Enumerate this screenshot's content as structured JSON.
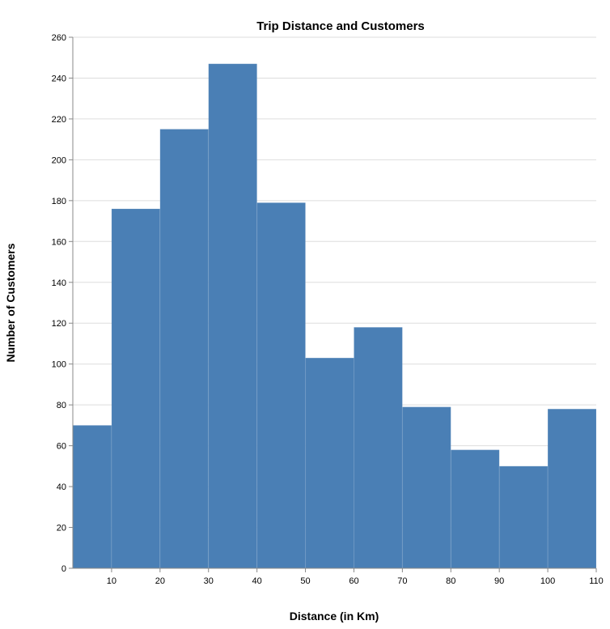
{
  "chart_data": {
    "type": "bar",
    "title": "Trip Distance and Customers",
    "xlabel": "Distance (in Km)",
    "ylabel": "Number of Customers",
    "bins": [
      {
        "x0": 2,
        "x1": 10,
        "value": 70
      },
      {
        "x0": 10,
        "x1": 20,
        "value": 176
      },
      {
        "x0": 20,
        "x1": 30,
        "value": 215
      },
      {
        "x0": 30,
        "x1": 40,
        "value": 247
      },
      {
        "x0": 40,
        "x1": 50,
        "value": 179
      },
      {
        "x0": 50,
        "x1": 60,
        "value": 103
      },
      {
        "x0": 60,
        "x1": 70,
        "value": 118
      },
      {
        "x0": 70,
        "x1": 80,
        "value": 79
      },
      {
        "x0": 80,
        "x1": 90,
        "value": 58
      },
      {
        "x0": 90,
        "x1": 100,
        "value": 50
      },
      {
        "x0": 100,
        "x1": 110,
        "value": 78
      }
    ],
    "xlim": [
      2,
      110
    ],
    "ylim": [
      0,
      260
    ],
    "xticks": [
      "10",
      "20",
      "30",
      "40",
      "50",
      "60",
      "70",
      "80",
      "90",
      "100",
      "110"
    ],
    "yticks": [
      "0",
      "20",
      "40",
      "60",
      "80",
      "100",
      "120",
      "140",
      "160",
      "180",
      "200",
      "220",
      "240",
      "260"
    ],
    "grid": true,
    "bar_color": "#4a7fb5"
  }
}
